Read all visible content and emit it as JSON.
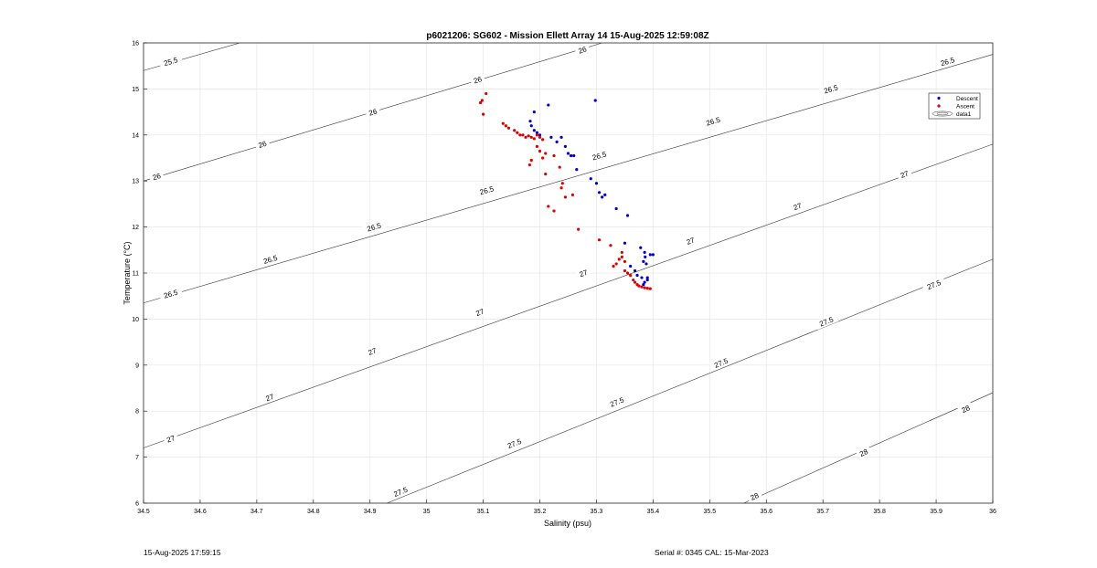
{
  "footer": {
    "timestamp": "15-Aug-2025 17:59:15",
    "serial": "Serial #: 0345  CAL: 15-Mar-2023"
  },
  "chart_data": {
    "type": "scatter",
    "title": "p6021206: SG602 - Mission Ellett Array 14 15-Aug-2025 12:59:08Z",
    "xlabel": "Salinity (psu)",
    "ylabel": "Temperature (°C)",
    "xlim": [
      34.5,
      36
    ],
    "ylim": [
      6,
      16
    ],
    "x_ticks": [
      "34.5",
      "34.6",
      "34.7",
      "34.8",
      "34.9",
      "35",
      "35.1",
      "35.2",
      "35.3",
      "35.4",
      "35.5",
      "35.6",
      "35.7",
      "35.8",
      "35.9",
      "36"
    ],
    "y_ticks": [
      "6",
      "7",
      "8",
      "9",
      "10",
      "11",
      "12",
      "13",
      "14",
      "15",
      "16"
    ],
    "grid": true,
    "legend_position": "top-right",
    "legend": [
      "Descent",
      "Ascent",
      "data1"
    ],
    "colors": {
      "descent": "#0000cc",
      "ascent": "#dd0000",
      "contour": "#333333"
    },
    "contours": [
      {
        "label": "25.5",
        "line": [
          [
            34.5,
            15.4
          ],
          [
            34.67,
            16.0
          ]
        ],
        "label_at": [
          [
            34.548,
            15.6
          ]
        ]
      },
      {
        "label": "26",
        "line": [
          [
            34.5,
            13.0
          ],
          [
            35.31,
            16.0
          ]
        ],
        "label_at": [
          [
            34.523,
            13.1
          ],
          [
            34.71,
            13.8
          ],
          [
            34.905,
            14.5
          ],
          [
            35.09,
            15.2
          ],
          [
            35.275,
            15.85
          ]
        ]
      },
      {
        "label": "26.5",
        "line": [
          [
            34.5,
            10.35
          ],
          [
            36.0,
            15.75
          ]
        ],
        "label_at": [
          [
            34.548,
            10.55
          ],
          [
            34.724,
            11.3
          ],
          [
            34.907,
            12.0
          ],
          [
            35.106,
            12.8
          ],
          [
            35.305,
            13.55
          ],
          [
            35.506,
            14.3
          ],
          [
            35.714,
            15.0
          ],
          [
            35.92,
            15.6
          ]
        ]
      },
      {
        "label": "27",
        "line": [
          [
            34.5,
            7.2
          ],
          [
            36.0,
            13.8
          ]
        ],
        "label_at": [
          [
            34.548,
            7.4
          ],
          [
            34.723,
            8.3
          ],
          [
            34.904,
            9.3
          ],
          [
            35.094,
            10.15
          ],
          [
            35.277,
            11.0
          ],
          [
            35.466,
            11.7
          ],
          [
            35.655,
            12.45
          ],
          [
            35.844,
            13.15
          ]
        ]
      },
      {
        "label": "27.5",
        "line": [
          [
            34.93,
            6.0
          ],
          [
            36.0,
            11.3
          ]
        ],
        "label_at": [
          [
            34.954,
            6.25
          ],
          [
            35.155,
            7.3
          ],
          [
            35.336,
            8.2
          ],
          [
            35.52,
            9.05
          ],
          [
            35.706,
            9.95
          ],
          [
            35.896,
            10.75
          ]
        ]
      },
      {
        "label": "28",
        "line": [
          [
            35.56,
            6.0
          ],
          [
            36.0,
            8.4
          ]
        ],
        "label_at": [
          [
            35.579,
            6.15
          ],
          [
            35.772,
            7.1
          ],
          [
            35.952,
            8.05
          ]
        ]
      }
    ],
    "series": [
      {
        "name": "Descent",
        "points": [
          [
            35.183,
            14.3
          ],
          [
            35.185,
            14.2
          ],
          [
            35.19,
            14.5
          ],
          [
            35.19,
            14.1
          ],
          [
            35.195,
            14.05
          ],
          [
            35.2,
            14.0
          ],
          [
            35.215,
            14.65
          ],
          [
            35.22,
            13.95
          ],
          [
            35.23,
            13.85
          ],
          [
            35.238,
            13.95
          ],
          [
            35.245,
            13.75
          ],
          [
            35.25,
            13.6
          ],
          [
            35.255,
            13.55
          ],
          [
            35.26,
            13.55
          ],
          [
            35.265,
            13.25
          ],
          [
            35.29,
            13.05
          ],
          [
            35.298,
            14.75
          ],
          [
            35.3,
            12.95
          ],
          [
            35.305,
            12.75
          ],
          [
            35.31,
            12.65
          ],
          [
            35.315,
            12.7
          ],
          [
            35.335,
            12.4
          ],
          [
            35.35,
            11.65
          ],
          [
            35.355,
            12.25
          ],
          [
            35.36,
            11.15
          ],
          [
            35.368,
            11.05
          ],
          [
            35.372,
            10.95
          ],
          [
            35.378,
            11.55
          ],
          [
            35.38,
            10.9
          ],
          [
            35.383,
            11.25
          ],
          [
            35.385,
            11.45
          ],
          [
            35.386,
            11.35
          ],
          [
            35.388,
            11.2
          ],
          [
            35.39,
            10.85
          ],
          [
            35.385,
            10.8
          ],
          [
            35.383,
            10.75
          ],
          [
            35.39,
            10.9
          ],
          [
            35.395,
            11.4
          ],
          [
            35.4,
            11.4
          ]
        ]
      },
      {
        "name": "Ascent",
        "points": [
          [
            35.095,
            14.7
          ],
          [
            35.098,
            14.75
          ],
          [
            35.1,
            14.45
          ],
          [
            35.105,
            14.9
          ],
          [
            35.135,
            14.25
          ],
          [
            35.14,
            14.2
          ],
          [
            35.145,
            14.15
          ],
          [
            35.155,
            14.1
          ],
          [
            35.16,
            14.05
          ],
          [
            35.165,
            14.0
          ],
          [
            35.17,
            14.0
          ],
          [
            35.175,
            13.95
          ],
          [
            35.18,
            13.98
          ],
          [
            35.185,
            13.95
          ],
          [
            35.19,
            13.92
          ],
          [
            35.195,
            14.0
          ],
          [
            35.2,
            13.95
          ],
          [
            35.205,
            13.9
          ],
          [
            35.195,
            13.75
          ],
          [
            35.2,
            13.65
          ],
          [
            35.205,
            13.5
          ],
          [
            35.21,
            13.6
          ],
          [
            35.185,
            13.45
          ],
          [
            35.182,
            13.35
          ],
          [
            35.21,
            13.15
          ],
          [
            35.225,
            13.55
          ],
          [
            35.235,
            13.3
          ],
          [
            35.24,
            12.95
          ],
          [
            35.238,
            12.85
          ],
          [
            35.245,
            12.65
          ],
          [
            35.258,
            12.7
          ],
          [
            35.215,
            12.45
          ],
          [
            35.225,
            12.35
          ],
          [
            35.268,
            11.95
          ],
          [
            35.305,
            11.72
          ],
          [
            35.325,
            11.6
          ],
          [
            35.33,
            11.15
          ],
          [
            35.335,
            11.2
          ],
          [
            35.34,
            11.3
          ],
          [
            35.345,
            11.45
          ],
          [
            35.345,
            11.35
          ],
          [
            35.35,
            11.25
          ],
          [
            35.35,
            11.05
          ],
          [
            35.355,
            11.0
          ],
          [
            35.36,
            10.95
          ],
          [
            35.365,
            10.85
          ],
          [
            35.368,
            10.8
          ],
          [
            35.372,
            10.75
          ],
          [
            35.375,
            10.72
          ],
          [
            35.38,
            10.7
          ],
          [
            35.385,
            10.68
          ],
          [
            35.39,
            10.67
          ],
          [
            35.395,
            10.66
          ]
        ]
      }
    ]
  }
}
